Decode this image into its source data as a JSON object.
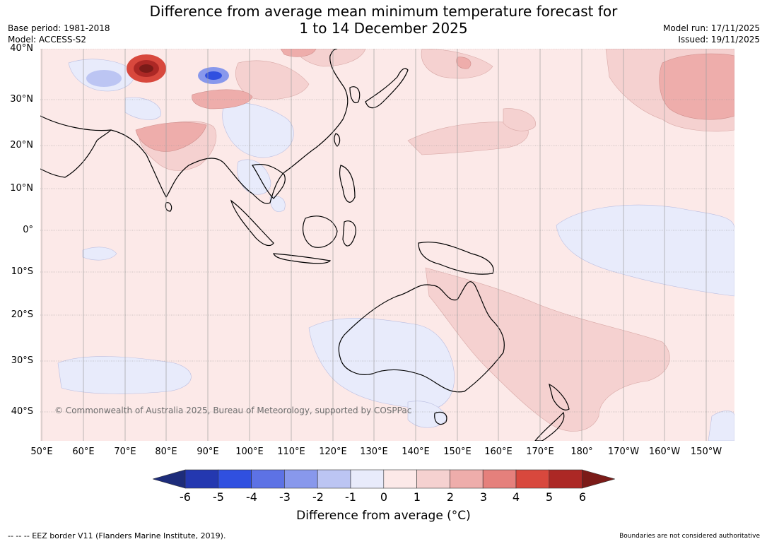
{
  "title": {
    "line1": "Difference from average mean minimum temperature forecast for",
    "line2": "1 to 14 December 2025"
  },
  "meta_left": {
    "base_period": "Base period: 1981-2018",
    "model": "Model: ACCESS-S2"
  },
  "meta_right": {
    "model_run": "Model run: 17/11/2025",
    "issued": "Issued: 19/11/2025"
  },
  "lat_labels": [
    "40°N",
    "30°N",
    "20°N",
    "10°N",
    "0°",
    "10°S",
    "20°S",
    "30°S",
    "40°S"
  ],
  "lon_labels": [
    "50°E",
    "60°E",
    "70°E",
    "80°E",
    "90°E",
    "100°E",
    "110°E",
    "120°E",
    "130°E",
    "140°E",
    "150°E",
    "160°E",
    "170°E",
    "180°",
    "170°W",
    "160°W",
    "150°W"
  ],
  "copyright": "© Commonwealth of Australia 2025, Bureau of Meteorology, supported by COSPPac",
  "colorbar": {
    "ticks": [
      "-6",
      "-5",
      "-4",
      "-3",
      "-2",
      "-1",
      "0",
      "1",
      "2",
      "3",
      "4",
      "5",
      "6"
    ],
    "label": "Difference from average (°C)",
    "colors": [
      "#1d2c7a",
      "#2438b0",
      "#3050e0",
      "#5d72e5",
      "#8898ec",
      "#bcc5f3",
      "#e8ebfb",
      "#fce9e8",
      "#f5d1d0",
      "#eeadab",
      "#e5807c",
      "#d8483d",
      "#ac2825",
      "#7b1b18"
    ]
  },
  "footer": {
    "eez": "--  --  -- EEZ border V11 (Flanders Marine Institute, 2019).",
    "disclaimer": "Boundaries are not considered authoritative"
  }
}
